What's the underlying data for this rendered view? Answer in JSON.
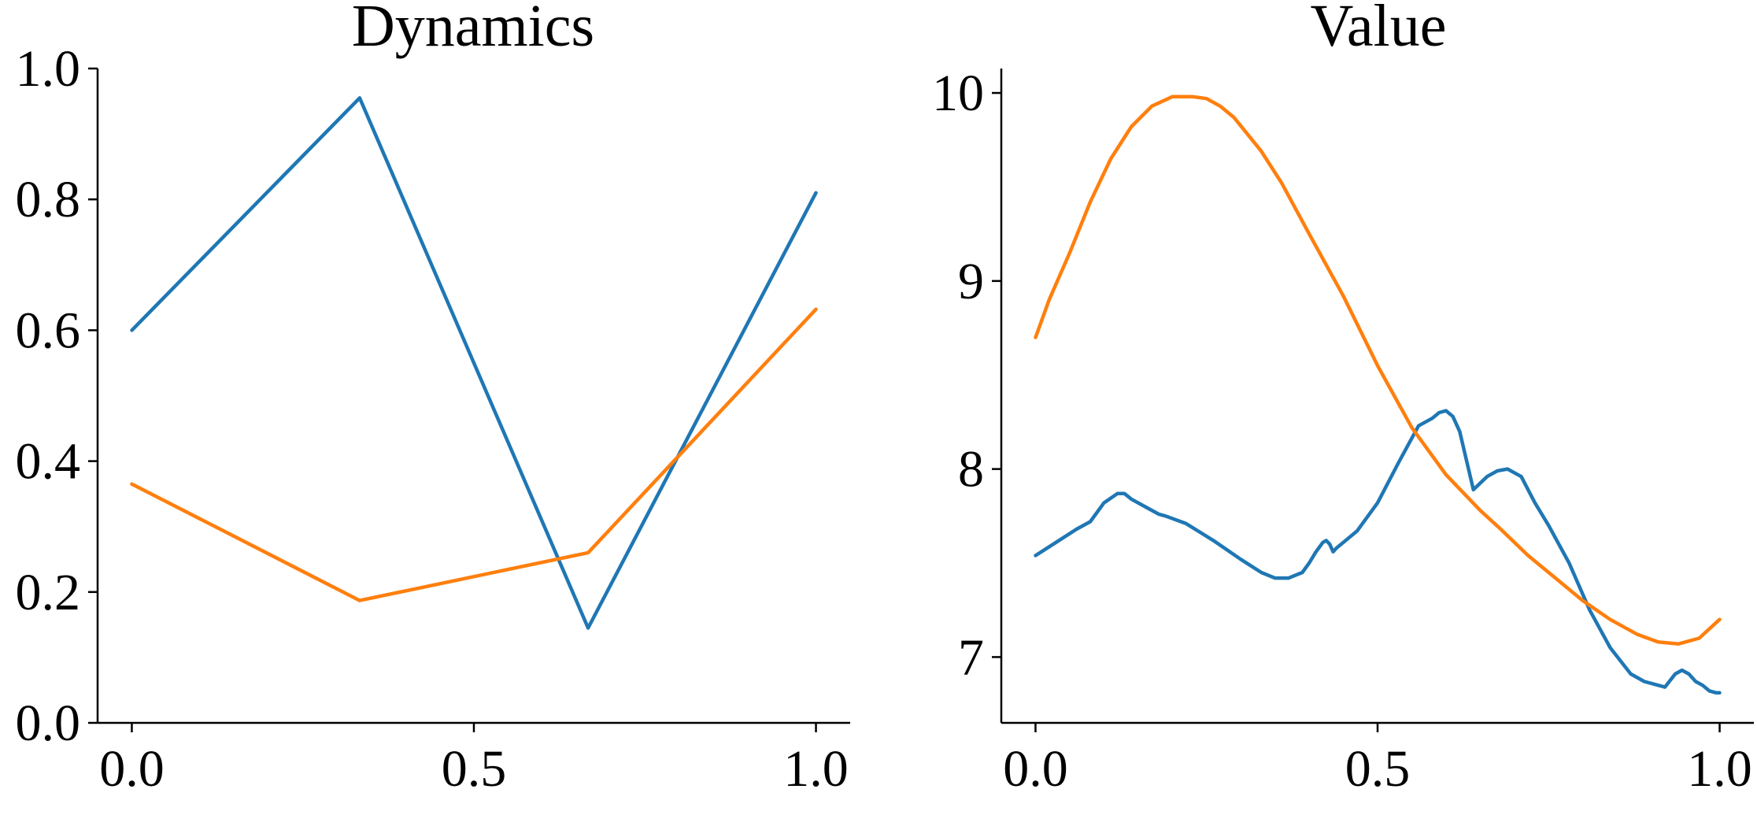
{
  "chart_data": [
    {
      "type": "line",
      "title": "Dynamics",
      "xlabel": "",
      "ylabel": "",
      "xlim": [
        -0.05,
        1.05
      ],
      "ylim": [
        0,
        1
      ],
      "xticks": [
        0,
        0.5,
        1
      ],
      "xtick_labels": [
        "0.0",
        "0.5",
        "1.0"
      ],
      "yticks": [
        0,
        0.2,
        0.4,
        0.6,
        0.8,
        1
      ],
      "ytick_labels": [
        "0.0",
        "0.2",
        "0.4",
        "0.6",
        "0.8",
        "1.0"
      ],
      "grid": false,
      "series": [
        {
          "color": "#1f77b4",
          "x": [
            0,
            0.333,
            0.667,
            1
          ],
          "y": [
            0.6,
            0.955,
            0.145,
            0.81
          ]
        },
        {
          "color": "#ff7f0e",
          "x": [
            0,
            0.333,
            0.667,
            1
          ],
          "y": [
            0.365,
            0.187,
            0.26,
            0.632
          ]
        }
      ]
    },
    {
      "type": "line",
      "title": "Value",
      "xlabel": "",
      "ylabel": "",
      "xlim": [
        -0.05,
        1.05
      ],
      "ylim": [
        6.65,
        10.13
      ],
      "xticks": [
        0,
        0.5,
        1
      ],
      "xtick_labels": [
        "0.0",
        "0.5",
        "1.0"
      ],
      "yticks": [
        7,
        8,
        9,
        10
      ],
      "ytick_labels": [
        "7",
        "8",
        "9",
        "10"
      ],
      "grid": false,
      "series": [
        {
          "color": "#1f77b4",
          "x": [
            0,
            0.03,
            0.06,
            0.08,
            0.1,
            0.12,
            0.13,
            0.14,
            0.16,
            0.18,
            0.19,
            0.22,
            0.26,
            0.3,
            0.33,
            0.35,
            0.37,
            0.39,
            0.4,
            0.41,
            0.42,
            0.425,
            0.43,
            0.435,
            0.44,
            0.45,
            0.47,
            0.5,
            0.53,
            0.56,
            0.58,
            0.59,
            0.6,
            0.61,
            0.62,
            0.64,
            0.66,
            0.675,
            0.69,
            0.71,
            0.73,
            0.75,
            0.78,
            0.81,
            0.84,
            0.87,
            0.89,
            0.92,
            0.935,
            0.945,
            0.955,
            0.965,
            0.975,
            0.985,
            0.995,
            1.0
          ],
          "y": [
            7.54,
            7.61,
            7.68,
            7.72,
            7.82,
            7.87,
            7.87,
            7.84,
            7.8,
            7.76,
            7.75,
            7.71,
            7.62,
            7.52,
            7.45,
            7.42,
            7.42,
            7.45,
            7.5,
            7.56,
            7.61,
            7.62,
            7.6,
            7.56,
            7.58,
            7.61,
            7.67,
            7.82,
            8.03,
            8.23,
            8.27,
            8.3,
            8.31,
            8.28,
            8.2,
            7.89,
            7.96,
            7.99,
            8.0,
            7.96,
            7.82,
            7.7,
            7.5,
            7.25,
            7.05,
            6.91,
            6.87,
            6.84,
            6.91,
            6.93,
            6.91,
            6.87,
            6.85,
            6.82,
            6.81,
            6.81
          ]
        },
        {
          "color": "#ff7f0e",
          "x": [
            0,
            0.02,
            0.05,
            0.08,
            0.11,
            0.14,
            0.17,
            0.2,
            0.23,
            0.25,
            0.27,
            0.29,
            0.31,
            0.33,
            0.36,
            0.4,
            0.45,
            0.5,
            0.55,
            0.6,
            0.65,
            0.68,
            0.72,
            0.76,
            0.8,
            0.84,
            0.88,
            0.91,
            0.94,
            0.97,
            1.0
          ],
          "y": [
            8.7,
            8.9,
            9.15,
            9.42,
            9.65,
            9.82,
            9.93,
            9.98,
            9.98,
            9.97,
            9.93,
            9.87,
            9.78,
            9.69,
            9.52,
            9.25,
            8.92,
            8.55,
            8.22,
            7.97,
            7.78,
            7.68,
            7.54,
            7.42,
            7.3,
            7.2,
            7.12,
            7.08,
            7.07,
            7.1,
            7.2
          ]
        }
      ]
    }
  ]
}
